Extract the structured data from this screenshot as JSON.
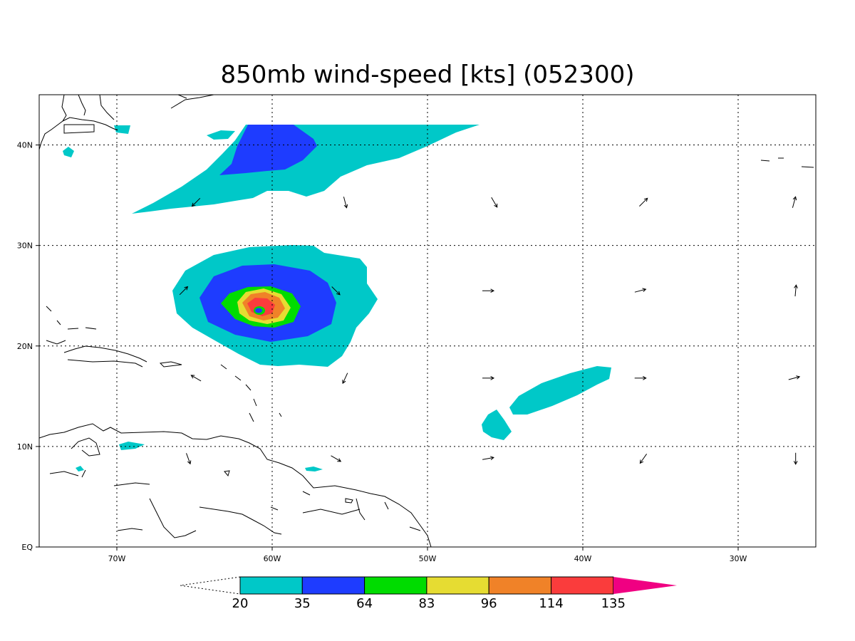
{
  "title": "850mb wind-speed [kts] (052300)",
  "map": {
    "lon_range": [
      -75,
      -25
    ],
    "lat_range": [
      0,
      45
    ],
    "lon_ticks": [
      {
        "lon": -70,
        "label": "70W"
      },
      {
        "lon": -60,
        "label": "60W"
      },
      {
        "lon": -50,
        "label": "50W"
      },
      {
        "lon": -40,
        "label": "40W"
      },
      {
        "lon": -30,
        "label": "30W"
      }
    ],
    "lat_ticks": [
      {
        "lat": 0,
        "label": "EQ"
      },
      {
        "lat": 10,
        "label": "10N"
      },
      {
        "lat": 20,
        "label": "20N"
      },
      {
        "lat": 30,
        "label": "30N"
      },
      {
        "lat": 40,
        "label": "40N"
      }
    ],
    "grid": true
  },
  "colorbar": {
    "levels": [
      "20",
      "35",
      "64",
      "83",
      "96",
      "114",
      "135"
    ],
    "colors": [
      "#00c8c8",
      "#1e3cff",
      "#00dc00",
      "#e6dc32",
      "#f08228",
      "#fa3c3c",
      "#f00082"
    ]
  },
  "vectors": [
    {
      "lon": -64.9,
      "lat": 34.3,
      "dir": 225
    },
    {
      "lon": -55.3,
      "lat": 34.3,
      "dir": 165
    },
    {
      "lon": -45.7,
      "lat": 34.3,
      "dir": 150
    },
    {
      "lon": -36.1,
      "lat": 34.3,
      "dir": 45
    },
    {
      "lon": -26.4,
      "lat": 34.3,
      "dir": 15
    },
    {
      "lon": -65.7,
      "lat": 25.5,
      "dir": 45
    },
    {
      "lon": -55.9,
      "lat": 25.5,
      "dir": 135
    },
    {
      "lon": -46.1,
      "lat": 25.5,
      "dir": 90
    },
    {
      "lon": -36.3,
      "lat": 25.5,
      "dir": 75
    },
    {
      "lon": -26.3,
      "lat": 25.5,
      "dir": 5
    },
    {
      "lon": -64.9,
      "lat": 16.8,
      "dir": 300
    },
    {
      "lon": -55.3,
      "lat": 16.8,
      "dir": 205
    },
    {
      "lon": -46.1,
      "lat": 16.8,
      "dir": 90
    },
    {
      "lon": -36.3,
      "lat": 16.8,
      "dir": 90
    },
    {
      "lon": -26.4,
      "lat": 16.8,
      "dir": 75
    },
    {
      "lon": -65.4,
      "lat": 8.8,
      "dir": 160
    },
    {
      "lon": -55.9,
      "lat": 8.8,
      "dir": 120
    },
    {
      "lon": -46.1,
      "lat": 8.8,
      "dir": 80
    },
    {
      "lon": -36.1,
      "lat": 8.8,
      "dir": 215
    },
    {
      "lon": -26.3,
      "lat": 8.8,
      "dir": 180
    }
  ]
}
